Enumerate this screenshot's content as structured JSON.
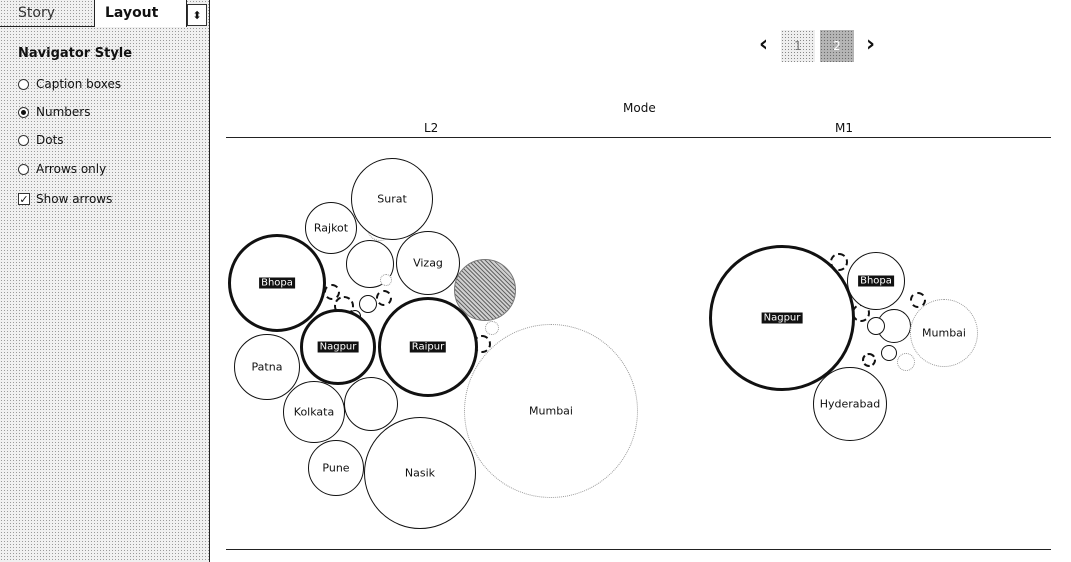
{
  "tabs": {
    "story": "Story",
    "layout": "Layout",
    "menu_glyph": "⬍"
  },
  "navigator": {
    "title": "Navigator Style",
    "options": [
      {
        "label": "Caption boxes",
        "selected": false
      },
      {
        "label": "Numbers",
        "selected": true
      },
      {
        "label": "Dots",
        "selected": false
      },
      {
        "label": "Arrows only",
        "selected": false
      }
    ],
    "show_arrows": {
      "label": "Show arrows",
      "checked": true
    }
  },
  "pager": {
    "prev": "‹",
    "next": "›",
    "pages": [
      "1",
      "2"
    ],
    "current": "2"
  },
  "chart_data": {
    "type": "bubble",
    "column_header": "Mode",
    "columns": [
      "L2",
      "M1"
    ],
    "packs": [
      {
        "column": "L2",
        "bubbles": [
          {
            "label": "Surat"
          },
          {
            "label": "Rajkot"
          },
          {
            "label": "Vizag"
          },
          {
            "label": "Bhopa"
          },
          {
            "label": "Nagpur"
          },
          {
            "label": "Raipur"
          },
          {
            "label": "Patna"
          },
          {
            "label": "Kolkata"
          },
          {
            "label": "Mumbai"
          },
          {
            "label": "Pune"
          },
          {
            "label": "Nasik"
          }
        ]
      },
      {
        "column": "M1",
        "bubbles": [
          {
            "label": "Nagpur"
          },
          {
            "label": "Bhopa"
          },
          {
            "label": "Mumbai"
          },
          {
            "label": "Hyderabad"
          }
        ]
      }
    ]
  }
}
